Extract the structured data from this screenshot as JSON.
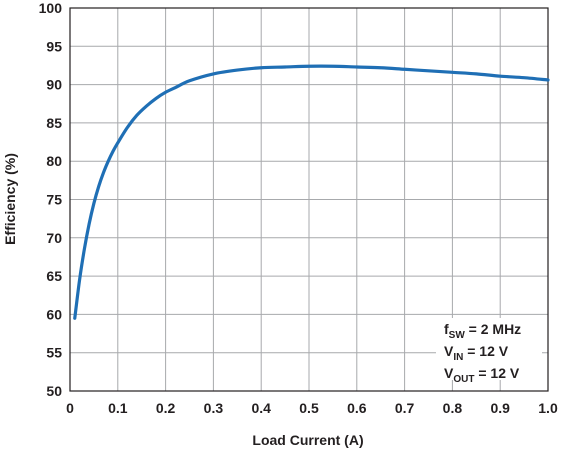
{
  "chart_data": {
    "type": "line",
    "title": "",
    "xlabel": "Load Current (A)",
    "ylabel": "Efficiency (%)",
    "xlim": [
      0,
      1.0
    ],
    "ylim": [
      50,
      100
    ],
    "x_ticks": [
      "0",
      "0.1",
      "0.2",
      "0.3",
      "0.4",
      "0.5",
      "0.6",
      "0.7",
      "0.8",
      "0.9",
      "1.0"
    ],
    "y_ticks": [
      "50",
      "55",
      "60",
      "65",
      "70",
      "75",
      "80",
      "85",
      "90",
      "95",
      "100"
    ],
    "grid": true,
    "line_color": "#1f6fb5",
    "series": [
      {
        "x": [
          0.01,
          0.02,
          0.03,
          0.04,
          0.05,
          0.06,
          0.07,
          0.08,
          0.09,
          0.1,
          0.12,
          0.14,
          0.16,
          0.18,
          0.2,
          0.22,
          0.25,
          0.3,
          0.35,
          0.4,
          0.45,
          0.5,
          0.55,
          0.6,
          0.65,
          0.7,
          0.75,
          0.8,
          0.85,
          0.9,
          0.95,
          1.0
        ],
        "y": [
          59.5,
          64.5,
          68.5,
          71.8,
          74.5,
          76.7,
          78.5,
          80.0,
          81.3,
          82.4,
          84.4,
          86.0,
          87.2,
          88.2,
          89.0,
          89.6,
          90.5,
          91.4,
          91.9,
          92.2,
          92.3,
          92.4,
          92.4,
          92.3,
          92.2,
          92.0,
          91.8,
          91.6,
          91.4,
          91.1,
          90.9,
          90.6
        ]
      }
    ],
    "annotations": [
      {
        "main": "f",
        "sub": "SW",
        "rest": " = 2 MHz"
      },
      {
        "main": "V",
        "sub": "IN",
        "rest": " = 12 V"
      },
      {
        "main": "V",
        "sub": "OUT",
        "rest": " = 12 V"
      }
    ]
  }
}
